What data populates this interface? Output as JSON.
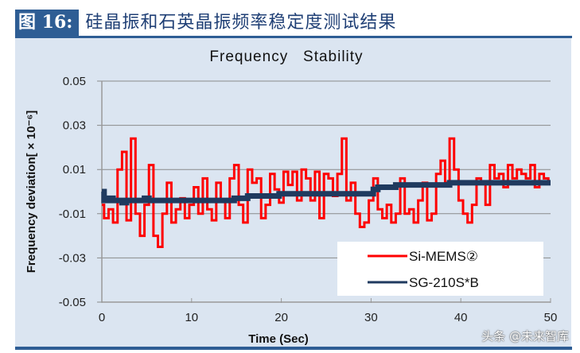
{
  "figure": {
    "label": "图 16:",
    "title": "硅晶振和石英晶振频率稳定度测试结果"
  },
  "watermark": "头条 @未来智库",
  "colors": {
    "header_blue": "#2e5d94",
    "panel_bg": "#dbe5f1",
    "si_mems": "#ff0000",
    "sg_210": "#1f3a5f",
    "grid": "#8a8a8a"
  },
  "chart_data": {
    "type": "line",
    "title": "Frequency   Stability",
    "xlabel": "Time (Sec)",
    "ylabel": "Frequency deviation[ × 10⁻⁶]",
    "xlim": [
      0,
      50
    ],
    "ylim": [
      -0.05,
      0.05
    ],
    "x_ticks": [
      "0",
      "10",
      "20",
      "30",
      "40",
      "50"
    ],
    "y_ticks": [
      "0.05",
      "0.03",
      "0.01",
      "-0.01",
      "-0.03",
      "-0.05"
    ],
    "grid": "horizontal",
    "legend_position": "lower right",
    "legend": [
      "Si-MEMS②",
      "SG-210S*B"
    ],
    "x": [
      0,
      0.5,
      1,
      1.5,
      2,
      2.5,
      3,
      3.5,
      4,
      4.5,
      5,
      5.5,
      6,
      6.5,
      7,
      7.5,
      8,
      8.5,
      9,
      9.5,
      10,
      10.5,
      11,
      11.5,
      12,
      12.5,
      13,
      13.5,
      14,
      14.5,
      15,
      15.5,
      16,
      16.5,
      17,
      17.5,
      18,
      18.5,
      19,
      19.5,
      20,
      20.5,
      21,
      21.5,
      22,
      22.5,
      23,
      23.5,
      24,
      24.5,
      25,
      25.5,
      26,
      26.5,
      27,
      27.5,
      28,
      28.5,
      29,
      29.5,
      30,
      30.5,
      31,
      31.5,
      32,
      32.5,
      33,
      33.5,
      34,
      34.5,
      35,
      35.5,
      36,
      36.5,
      37,
      37.5,
      38,
      38.5,
      39,
      39.5,
      40,
      40.5,
      41,
      41.5,
      42,
      42.5,
      43,
      43.5,
      44,
      44.5,
      45,
      45.5,
      46,
      46.5,
      47,
      47.5,
      48,
      48.5,
      49,
      49.5,
      50
    ],
    "series": [
      {
        "name": "Si-MEMS②",
        "color": "#ff0000",
        "values": [
          -0.006,
          -0.012,
          -0.008,
          -0.014,
          0.01,
          0.018,
          -0.013,
          0.024,
          -0.01,
          -0.02,
          -0.006,
          0.012,
          -0.02,
          -0.025,
          -0.01,
          0.004,
          -0.014,
          -0.008,
          -0.003,
          -0.012,
          -0.006,
          0.002,
          -0.01,
          0.006,
          -0.008,
          -0.013,
          0.004,
          -0.004,
          -0.012,
          0.006,
          0.012,
          -0.006,
          -0.014,
          0.01,
          0.004,
          0.006,
          -0.012,
          -0.006,
          0.008,
          0.001,
          -0.005,
          0.009,
          0.003,
          0.009,
          -0.004,
          0.01,
          0.006,
          -0.004,
          0.009,
          -0.012,
          0.008,
          0.006,
          -0.002,
          0.008,
          0.024,
          -0.004,
          0.004,
          -0.01,
          -0.016,
          -0.014,
          -0.004,
          0.006,
          -0.008,
          -0.012,
          -0.006,
          -0.014,
          -0.01,
          0.006,
          -0.01,
          -0.008,
          -0.014,
          -0.004,
          0.004,
          -0.013,
          -0.01,
          0.008,
          0.014,
          0.004,
          0.024,
          0.01,
          -0.004,
          -0.01,
          -0.014,
          -0.006,
          0.006,
          0.004,
          -0.006,
          0.012,
          0.006,
          0.008,
          0.002,
          0.012,
          0.006,
          0.01,
          0.008,
          0.006,
          0.012,
          0.002,
          0.008,
          0.006,
          0.004
        ]
      },
      {
        "name": "SG-210S*B",
        "color": "#1f3a5f",
        "values": [
          0.0,
          -0.004,
          -0.003,
          -0.004,
          -0.004,
          -0.005,
          -0.004,
          -0.004,
          -0.004,
          -0.004,
          -0.003,
          -0.004,
          -0.004,
          -0.004,
          -0.004,
          -0.004,
          -0.004,
          -0.004,
          -0.004,
          -0.004,
          -0.004,
          -0.004,
          -0.004,
          -0.004,
          -0.004,
          -0.004,
          -0.004,
          -0.004,
          -0.004,
          -0.004,
          -0.003,
          -0.003,
          -0.003,
          -0.002,
          -0.002,
          -0.002,
          -0.002,
          -0.002,
          -0.002,
          -0.002,
          -0.001,
          -0.001,
          -0.001,
          -0.001,
          -0.001,
          -0.001,
          -0.001,
          -0.001,
          -0.001,
          -0.001,
          -0.001,
          -0.001,
          -0.001,
          -0.001,
          -0.001,
          -0.001,
          -0.001,
          -0.001,
          -0.001,
          -0.001,
          -0.001,
          0.001,
          0.002,
          0.002,
          0.002,
          0.002,
          0.003,
          0.003,
          0.003,
          0.003,
          0.003,
          0.003,
          0.003,
          0.003,
          0.003,
          0.003,
          0.003,
          0.003,
          0.004,
          0.004,
          0.004,
          0.004,
          0.004,
          0.004,
          0.004,
          0.004,
          0.004,
          0.004,
          0.004,
          0.004,
          0.004,
          0.004,
          0.004,
          0.004,
          0.004,
          0.004,
          0.004,
          0.004,
          0.004,
          0.004,
          0.004
        ]
      }
    ]
  }
}
